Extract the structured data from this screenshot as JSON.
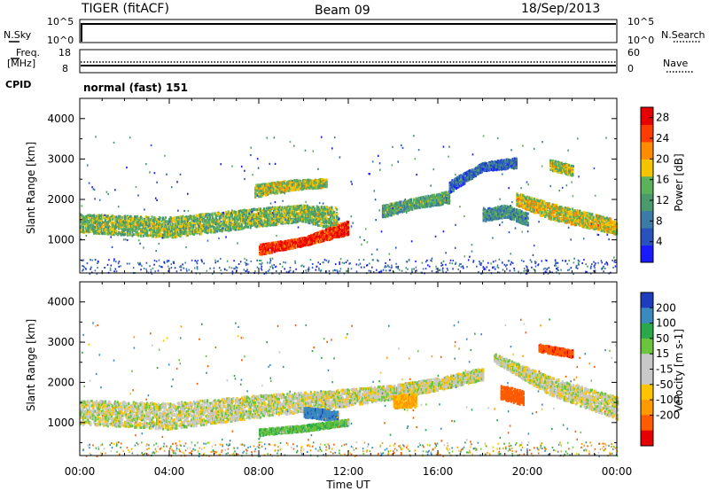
{
  "header": {
    "station": "TIGER (fitACF)",
    "beam": "Beam 09",
    "date": "18/Sep/2013"
  },
  "top_panel": {
    "left_label": "N.Sky",
    "right_label": "N.Search",
    "left_ticks": [
      "10^5",
      "10^0"
    ],
    "right_ticks": [
      "10^5",
      "10^0"
    ]
  },
  "freq_panel": {
    "left_label_1": "Freq.",
    "left_label_2": "[MHz]",
    "right_label": "Nave",
    "left_ticks": [
      "18",
      "8"
    ],
    "right_ticks": [
      "60",
      "0"
    ]
  },
  "cpid": {
    "label": "CPID",
    "mode": "normal (fast) 151"
  },
  "chart_data": [
    {
      "type": "heatmap",
      "name": "power",
      "ylabel": "Slant Range [km]",
      "xlabel": "Time UT",
      "x_ticks": [
        "00:00",
        "04:00",
        "08:00",
        "12:00",
        "16:00",
        "20:00",
        "00:00"
      ],
      "y_ticks": [
        "1000",
        "2000",
        "3000",
        "4000"
      ],
      "ylim": [
        180,
        4500
      ],
      "xlim_hours": [
        0,
        24
      ],
      "colorbar": {
        "label": "Power [dB]",
        "ticks": [
          "4",
          "8",
          "12",
          "16",
          "20",
          "24",
          "28"
        ],
        "range": [
          0,
          30
        ]
      },
      "bands": [
        {
          "x": [
            0,
            4,
            8,
            10,
            11.5
          ],
          "y": [
            1400,
            1300,
            1550,
            1650,
            1500
          ],
          "width": [
            450,
            500,
            450,
            400,
            600
          ],
          "value": 14
        },
        {
          "x": [
            8,
            10,
            12
          ],
          "y": [
            750,
            950,
            1300
          ],
          "width": [
            250,
            200,
            350
          ],
          "value": 26
        },
        {
          "x": [
            7.8,
            9.5,
            11
          ],
          "y": [
            2200,
            2350,
            2400
          ],
          "width": [
            300,
            250,
            200
          ],
          "value": 16
        },
        {
          "x": [
            13.5,
            15,
            16.5
          ],
          "y": [
            1700,
            1900,
            2050
          ],
          "width": [
            300,
            250,
            300
          ],
          "value": 12
        },
        {
          "x": [
            16.5,
            18,
            19.5
          ],
          "y": [
            2300,
            2800,
            2900
          ],
          "width": [
            300,
            200,
            250
          ],
          "value": 6
        },
        {
          "x": [
            19.5,
            21,
            24
          ],
          "y": [
            2000,
            1700,
            1300
          ],
          "width": [
            300,
            400,
            350
          ],
          "value": 17
        },
        {
          "x": [
            18,
            19,
            20
          ],
          "y": [
            1600,
            1700,
            1500
          ],
          "width": [
            300,
            300,
            300
          ],
          "value": 10
        },
        {
          "x": [
            21,
            22
          ],
          "y": [
            2850,
            2700
          ],
          "width": [
            250,
            250
          ],
          "value": 15
        }
      ]
    },
    {
      "type": "heatmap",
      "name": "velocity",
      "ylabel": "Slant Range [km]",
      "xlabel": "Time UT",
      "x_ticks": [
        "00:00",
        "04:00",
        "08:00",
        "12:00",
        "16:00",
        "20:00",
        "00:00"
      ],
      "y_ticks": [
        "1000",
        "2000",
        "3000",
        "4000"
      ],
      "ylim": [
        180,
        4500
      ],
      "xlim_hours": [
        0,
        24
      ],
      "colorbar": {
        "label": "Velocity [m s-1]",
        "ticks": [
          "200",
          "100",
          "50",
          "15",
          "-15",
          "-50",
          "-100",
          "-200"
        ],
        "range": [
          -250,
          250
        ]
      },
      "bands": [
        {
          "x": [
            0,
            4,
            8,
            11,
            14,
            16,
            18
          ],
          "y": [
            1250,
            1150,
            1400,
            1550,
            1750,
            1950,
            2200
          ],
          "width": [
            600,
            650,
            550,
            450,
            350,
            300,
            300
          ],
          "value": 0
        },
        {
          "x": [
            18.5,
            21,
            24
          ],
          "y": [
            2600,
            1900,
            1350
          ],
          "width": [
            200,
            450,
            550
          ],
          "value": 0
        },
        {
          "x": [
            10,
            11.5
          ],
          "y": [
            1250,
            1150
          ],
          "width": [
            250,
            250
          ],
          "value": 180
        },
        {
          "x": [
            14,
            15
          ],
          "y": [
            1500,
            1550
          ],
          "width": [
            300,
            350
          ],
          "value": -60
        },
        {
          "x": [
            18.8,
            19.8
          ],
          "y": [
            1750,
            1600
          ],
          "width": [
            350,
            350
          ],
          "value": -130
        },
        {
          "x": [
            20.5,
            22
          ],
          "y": [
            2850,
            2700
          ],
          "width": [
            180,
            180
          ],
          "value": -180
        },
        {
          "x": [
            8,
            10,
            12
          ],
          "y": [
            750,
            850,
            1000
          ],
          "width": [
            150,
            150,
            150
          ],
          "value": 40
        }
      ]
    }
  ]
}
